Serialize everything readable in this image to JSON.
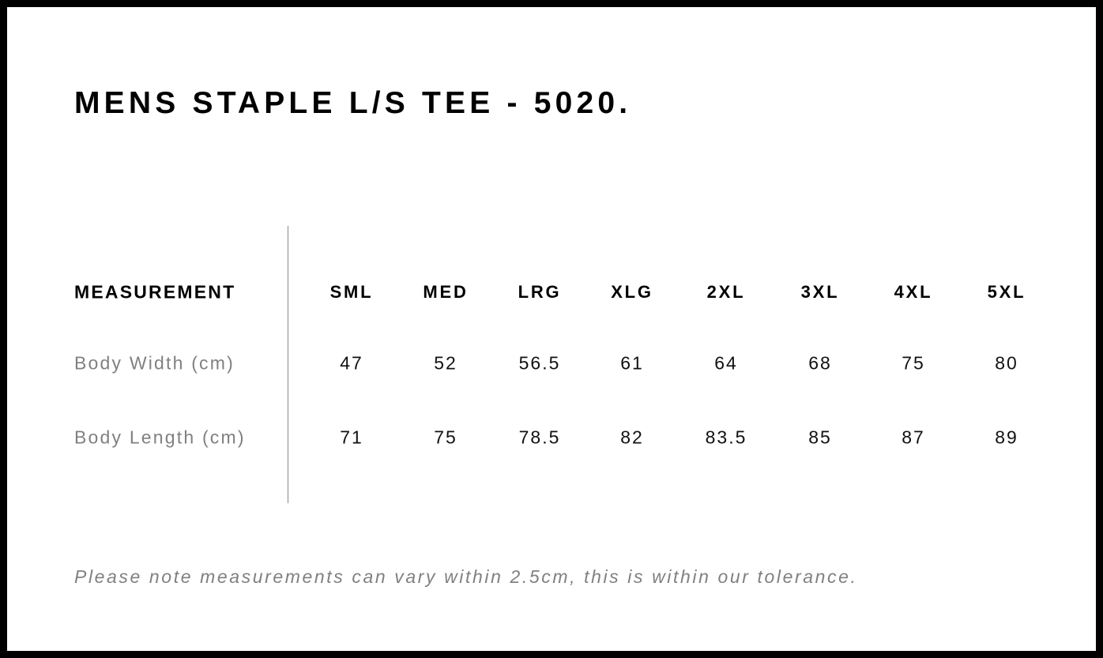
{
  "title": "MENS STAPLE L/S TEE - 5020.",
  "table": {
    "header_label": "MEASUREMENT",
    "sizes": [
      "SML",
      "MED",
      "LRG",
      "XLG",
      "2XL",
      "3XL",
      "4XL",
      "5XL"
    ],
    "rows": [
      {
        "label": "Body Width (cm)",
        "values": [
          "47",
          "52",
          "56.5",
          "61",
          "64",
          "68",
          "75",
          "80"
        ]
      },
      {
        "label": "Body Length (cm)",
        "values": [
          "71",
          "75",
          "78.5",
          "82",
          "83.5",
          "85",
          "87",
          "89"
        ]
      }
    ]
  },
  "note": "Please note measurements can vary within 2.5cm, this is within our tolerance."
}
